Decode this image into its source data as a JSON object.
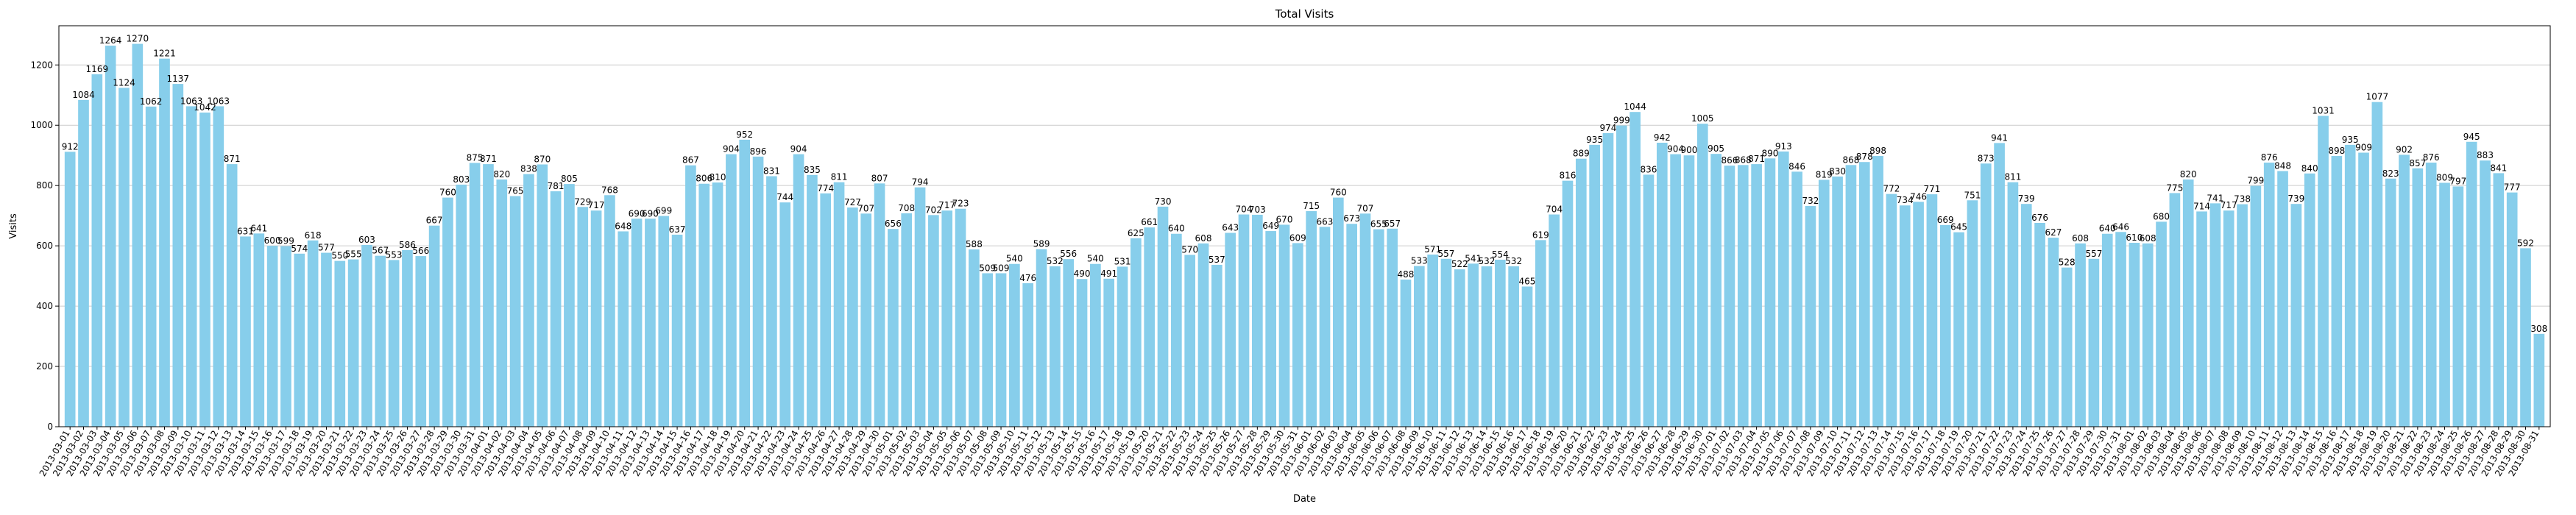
{
  "chart_data": {
    "type": "bar",
    "title": "Total Visits",
    "xlabel": "Date",
    "ylabel": "Visits",
    "ylim": [
      0,
      1330
    ],
    "yticks": [
      0,
      200,
      400,
      600,
      800,
      1000,
      1200
    ],
    "grid": "y",
    "bar_color": "#87CEEB",
    "start_date": "2013-03-01",
    "end_date": "2013-08-31",
    "values": [
      912,
      1084,
      1169,
      1264,
      1124,
      1270,
      1062,
      1221,
      1137,
      1063,
      1042,
      1063,
      871,
      631,
      641,
      600,
      599,
      574,
      618,
      577,
      550,
      555,
      603,
      567,
      553,
      586,
      566,
      667,
      760,
      803,
      875,
      871,
      820,
      765,
      838,
      870,
      781,
      805,
      729,
      717,
      768,
      648,
      690,
      690,
      699,
      637,
      867,
      806,
      810,
      904,
      952,
      896,
      831,
      744,
      904,
      835,
      774,
      811,
      727,
      707,
      807,
      656,
      708,
      794,
      702,
      717,
      723,
      588,
      509,
      509,
      540,
      476,
      589,
      532,
      556,
      490,
      540,
      491,
      531,
      625,
      661,
      730,
      640,
      570,
      608,
      537,
      643,
      704,
      703,
      649,
      670,
      609,
      715,
      663,
      760,
      673,
      707,
      655,
      657,
      488,
      533,
      571,
      557,
      522,
      541,
      532,
      554,
      532,
      465,
      619,
      704,
      816,
      889,
      935,
      974,
      999,
      1044,
      836,
      942,
      904,
      900,
      1005,
      905,
      866,
      868,
      871,
      890,
      913,
      846,
      732,
      819,
      830,
      868,
      878,
      898,
      772,
      734,
      746,
      771,
      669,
      645,
      751,
      873,
      941,
      811,
      739,
      676,
      627,
      528,
      608,
      557,
      640,
      646,
      610,
      608,
      680,
      775,
      820,
      714,
      741,
      717,
      738,
      799,
      876,
      848,
      739,
      840,
      1031,
      898,
      935,
      909,
      1077,
      823,
      902,
      857,
      876,
      809,
      797,
      945,
      883,
      841,
      777,
      592,
      308
    ]
  }
}
